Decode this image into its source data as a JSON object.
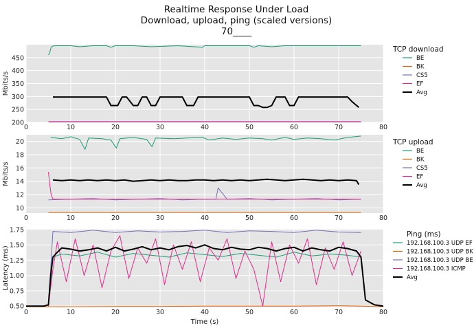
{
  "title": {
    "line1": "Realtime Response Under Load",
    "line2": "Download, upload, ping (scaled versions)",
    "line3": "70____"
  },
  "colors": {
    "BE": "#1b9e77",
    "BK": "#d95f02",
    "CS5": "#7570b3",
    "EF": "#e7298a",
    "Avg": "#000000",
    "plot_bg": "#e5e5e5",
    "grid": "#ffffff"
  },
  "chart_data": [
    {
      "type": "line",
      "name": "download",
      "ylabel": "Mbits/s",
      "xlabel": "",
      "xlim": [
        0,
        80
      ],
      "ylim": [
        200,
        500
      ],
      "xticks": [
        0,
        10,
        20,
        30,
        40,
        50,
        60,
        70,
        80
      ],
      "yticks": [
        200,
        250,
        300,
        350,
        400,
        450
      ],
      "legend_title": "TCP download",
      "legend_placement": "right",
      "grid": true,
      "series": [
        {
          "name": "BE",
          "color": "#1b9e77",
          "x": [
            5,
            5.3,
            5.6,
            6,
            7,
            10,
            12,
            15,
            18,
            19,
            20,
            24,
            28,
            34,
            39.5,
            40,
            41,
            45,
            50,
            51,
            52,
            55,
            58,
            60,
            65,
            70,
            75
          ],
          "y": [
            460,
            470,
            490,
            495,
            496,
            496,
            492,
            496,
            496,
            490,
            496,
            496,
            492,
            496,
            490,
            496,
            496,
            496,
            496,
            490,
            496,
            492,
            496,
            496,
            496,
            496,
            496
          ]
        },
        {
          "name": "BK",
          "color": "#d95f02",
          "x": [
            5,
            75
          ],
          "y": [
            200,
            200
          ]
        },
        {
          "name": "CS5",
          "color": "#7570b3",
          "x": [
            5,
            75
          ],
          "y": [
            201,
            201
          ]
        },
        {
          "name": "EF",
          "color": "#e7298a",
          "x": [
            5,
            75
          ],
          "y": [
            203,
            203
          ]
        },
        {
          "name": "Avg",
          "color": "#000000",
          "x": [
            6,
            18,
            19,
            20.5,
            21.5,
            22.5,
            24,
            25,
            26,
            27,
            28,
            29,
            30,
            35,
            36,
            37.5,
            38.5,
            40,
            41,
            50,
            51,
            52,
            53,
            54,
            55,
            56,
            58,
            59,
            60,
            61,
            72,
            73,
            74.5
          ],
          "y": [
            298,
            298,
            265,
            265,
            298,
            298,
            265,
            265,
            298,
            298,
            265,
            265,
            298,
            298,
            265,
            265,
            298,
            298,
            298,
            298,
            265,
            265,
            258,
            258,
            265,
            298,
            298,
            265,
            265,
            298,
            298,
            280,
            258
          ]
        }
      ]
    },
    {
      "type": "line",
      "name": "upload",
      "ylabel": "Mbits/s",
      "xlabel": "",
      "xlim": [
        0,
        80
      ],
      "ylim": [
        9.2,
        21
      ],
      "xticks": [
        0,
        10,
        20,
        30,
        40,
        50,
        60,
        70,
        80
      ],
      "yticks": [
        10,
        12,
        14,
        16,
        18,
        20
      ],
      "legend_title": "TCP upload",
      "legend_placement": "right",
      "grid": true,
      "series": [
        {
          "name": "BE",
          "color": "#1b9e77",
          "x": [
            5.5,
            8,
            10,
            12,
            13.2,
            14,
            17,
            19,
            20.2,
            21,
            24,
            27,
            28.2,
            29,
            33,
            36,
            39.5,
            41,
            44,
            47,
            50,
            53,
            55,
            58,
            60,
            63,
            66,
            69,
            72,
            75
          ],
          "y": [
            20.6,
            20.4,
            20.7,
            20.3,
            18.8,
            20.5,
            20.4,
            20.2,
            19.0,
            20.4,
            20.6,
            20.3,
            19.2,
            20.5,
            20.4,
            20.5,
            20.6,
            20.2,
            20.5,
            20.3,
            20.5,
            20.4,
            20.2,
            20.6,
            20.3,
            20.5,
            20.4,
            20.2,
            20.6,
            20.8
          ]
        },
        {
          "name": "BK",
          "color": "#d95f02",
          "x": [
            5,
            75
          ],
          "y": [
            9.3,
            9.3
          ]
        },
        {
          "name": "CS5",
          "color": "#7570b3",
          "x": [
            5,
            10,
            15,
            20,
            25,
            30,
            35,
            40,
            42.5,
            43,
            45,
            50,
            55,
            60,
            65,
            70,
            75
          ],
          "y": [
            11.2,
            11.3,
            11.4,
            11.2,
            11.3,
            11.4,
            11.2,
            11.3,
            11.3,
            13.0,
            11.3,
            11.4,
            11.2,
            11.3,
            11.4,
            11.2,
            11.3
          ]
        },
        {
          "name": "EF",
          "color": "#e7298a",
          "x": [
            5,
            5.3,
            5.6,
            6,
            75
          ],
          "y": [
            15.4,
            13.5,
            12.0,
            11.3,
            11.3
          ]
        },
        {
          "name": "Avg",
          "color": "#000000",
          "x": [
            6,
            8,
            10,
            12,
            14,
            16,
            18,
            20,
            22,
            24,
            26,
            28,
            30,
            32,
            34,
            36,
            38,
            40,
            42,
            44,
            46,
            48,
            50,
            52,
            54,
            56,
            58,
            60,
            62,
            64,
            66,
            68,
            70,
            72,
            74,
            74.5
          ],
          "y": [
            14.2,
            14.1,
            14.2,
            14.1,
            14.2,
            14.1,
            14.2,
            14.1,
            14.2,
            14.0,
            14.1,
            14.2,
            14.1,
            14.2,
            14.1,
            14.1,
            14.2,
            14.2,
            14.1,
            14.2,
            14.1,
            14.2,
            14.1,
            14.2,
            14.3,
            14.2,
            14.1,
            14.2,
            14.3,
            14.2,
            14.1,
            14.2,
            14.1,
            14.2,
            14.1,
            13.5
          ]
        }
      ]
    },
    {
      "type": "line",
      "name": "ping",
      "ylabel": "Latency (ms)",
      "xlabel": "Time (s)",
      "xlim": [
        0,
        80
      ],
      "ylim": [
        0.48,
        1.76
      ],
      "xticks": [
        0,
        10,
        20,
        30,
        40,
        50,
        60,
        70,
        80
      ],
      "yticks": [
        0.5,
        0.75,
        1.0,
        1.25,
        1.5,
        1.75
      ],
      "legend_title": "Ping (ms)",
      "legend_placement": "right",
      "grid": true,
      "series": [
        {
          "name": "192.168.100.3 UDP EF",
          "color": "#1b9e77",
          "x": [
            5,
            6,
            8,
            12,
            16,
            20,
            24,
            28,
            32,
            36,
            40,
            44,
            48,
            52,
            56,
            60,
            64,
            68,
            72,
            75
          ],
          "y": [
            0.5,
            1.3,
            1.35,
            1.32,
            1.38,
            1.3,
            1.36,
            1.33,
            1.3,
            1.37,
            1.34,
            1.31,
            1.36,
            1.33,
            1.3,
            1.38,
            1.32,
            1.35,
            1.33,
            1.3
          ]
        },
        {
          "name": "192.168.100.3 UDP BK",
          "color": "#d95f02",
          "x": [
            0,
            10,
            20,
            30,
            40,
            50,
            60,
            70,
            75,
            80
          ],
          "y": [
            0.49,
            0.49,
            0.495,
            0.495,
            0.5,
            0.5,
            0.5,
            0.505,
            0.5,
            0.49
          ]
        },
        {
          "name": "192.168.100.3 UDP BE",
          "color": "#7570b3",
          "x": [
            5,
            6,
            10,
            15,
            20,
            25,
            30,
            35,
            40,
            45,
            50,
            55,
            60,
            65,
            70,
            75
          ],
          "y": [
            0.5,
            1.72,
            1.7,
            1.74,
            1.7,
            1.73,
            1.71,
            1.72,
            1.74,
            1.7,
            1.73,
            1.72,
            1.7,
            1.74,
            1.71,
            1.7
          ]
        },
        {
          "name": "192.168.100.3 ICMP",
          "color": "#e7298a",
          "x": [
            5,
            6,
            7,
            9,
            11,
            13,
            15,
            17,
            19,
            21,
            23,
            25,
            27,
            29,
            31,
            33,
            35,
            37,
            39,
            41,
            43,
            45,
            47,
            49,
            51,
            53,
            55,
            57,
            59,
            61,
            63,
            65,
            67,
            69,
            71,
            73,
            75
          ],
          "y": [
            0.5,
            1.1,
            1.55,
            0.9,
            1.6,
            1.0,
            1.5,
            0.8,
            1.4,
            1.65,
            0.95,
            1.45,
            1.2,
            1.6,
            0.85,
            1.5,
            1.1,
            1.55,
            0.9,
            1.45,
            1.25,
            1.6,
            0.95,
            1.4,
            1.1,
            0.5,
            1.55,
            0.9,
            1.5,
            1.2,
            1.6,
            0.85,
            1.45,
            1.1,
            1.55,
            1.0,
            1.4
          ]
        },
        {
          "name": "Avg",
          "color": "#000000",
          "x": [
            0,
            4,
            5,
            5.5,
            6,
            7,
            8,
            10,
            12,
            14,
            16,
            18,
            20,
            22,
            24,
            26,
            28,
            30,
            32,
            34,
            36,
            38,
            40,
            42,
            44,
            46,
            48,
            50,
            52,
            54,
            56,
            58,
            60,
            62,
            64,
            66,
            68,
            70,
            72,
            74,
            75,
            76,
            78,
            80
          ],
          "y": [
            0.5,
            0.5,
            0.52,
            1.0,
            1.3,
            1.38,
            1.45,
            1.43,
            1.4,
            1.42,
            1.45,
            1.4,
            1.46,
            1.4,
            1.43,
            1.47,
            1.42,
            1.45,
            1.42,
            1.47,
            1.49,
            1.45,
            1.5,
            1.44,
            1.42,
            1.46,
            1.43,
            1.42,
            1.46,
            1.44,
            1.4,
            1.44,
            1.46,
            1.4,
            1.45,
            1.42,
            1.4,
            1.46,
            1.44,
            1.4,
            1.3,
            0.6,
            0.52,
            0.5
          ]
        }
      ]
    }
  ]
}
